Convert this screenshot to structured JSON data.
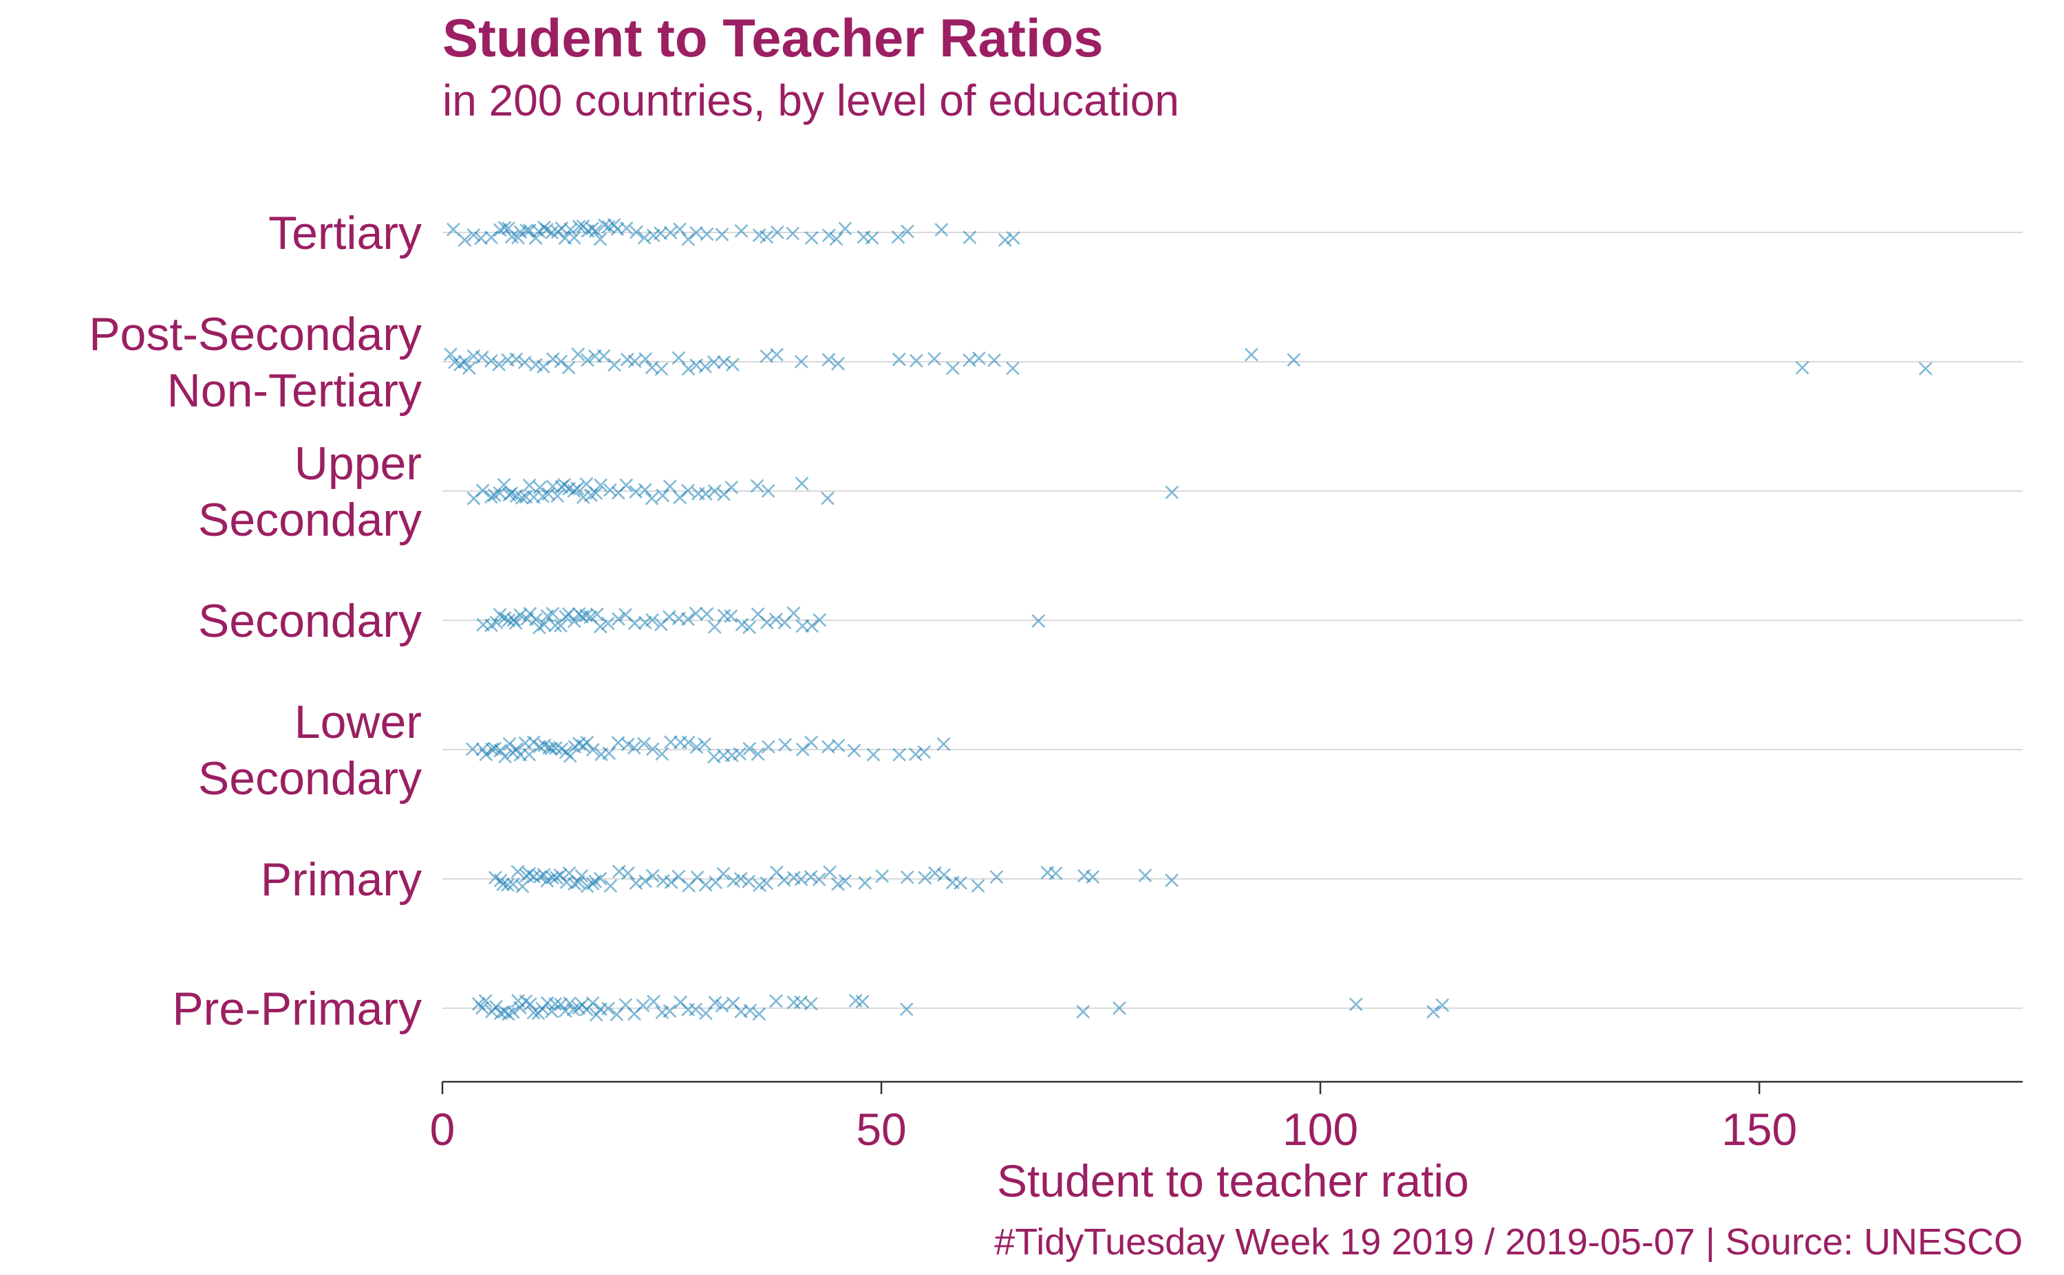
{
  "chart_data": {
    "type": "scatter",
    "title": "Student to Teacher Ratios",
    "subtitle": "in 200 countries, by level of education",
    "xlabel": "Student to teacher ratio",
    "caption": "#TidyTuesday Week 19 2019 / 2019-05-07 | Source: UNESCO",
    "xlim": [
      0,
      180
    ],
    "xticks": [
      0,
      50,
      100,
      150
    ],
    "grid": "horizontal",
    "marker": "x",
    "colors": {
      "text": "#9b1f62",
      "points": "#1a80b6",
      "grid": "#d9d9d9",
      "axis": "#333333"
    },
    "categories": [
      "Pre-Primary",
      "Primary",
      "Lower Secondary",
      "Secondary",
      "Upper Secondary",
      "Post-Secondary Non-Tertiary",
      "Tertiary"
    ],
    "category_display": {
      "Pre-Primary": [
        "Pre-Primary"
      ],
      "Primary": [
        "Primary"
      ],
      "Lower Secondary": [
        "Lower",
        "Secondary"
      ],
      "Secondary": [
        "Secondary"
      ],
      "Upper Secondary": [
        "Upper",
        "Secondary"
      ],
      "Post-Secondary Non-Tertiary": [
        "Post-Secondary",
        "Non-Tertiary"
      ],
      "Tertiary": [
        "Tertiary"
      ]
    },
    "series": [
      {
        "category": "Tertiary",
        "values": [
          1.2,
          2.5,
          3.5,
          4.5,
          5.5,
          6.5,
          7,
          7.5,
          8,
          8.5,
          9,
          9.5,
          10,
          10.5,
          11,
          11.5,
          12,
          12.5,
          13,
          13.5,
          14,
          14.5,
          15,
          15.5,
          16,
          16.5,
          17,
          17.5,
          18,
          18.5,
          19,
          19.5,
          20,
          21,
          22,
          23,
          24,
          25,
          26,
          27,
          28,
          29,
          30,
          32,
          34,
          36,
          37,
          38,
          40,
          42,
          44,
          45,
          46,
          48,
          49,
          52,
          53,
          57,
          60,
          64,
          65
        ]
      },
      {
        "category": "Post-Secondary Non-Tertiary",
        "values": [
          1,
          1.5,
          2,
          2.5,
          3,
          3.5,
          4.5,
          5.5,
          6.5,
          7.5,
          8.5,
          9.5,
          10.5,
          11.5,
          12.5,
          13.5,
          14.5,
          15.5,
          16.5,
          17.5,
          18.5,
          19.5,
          21,
          22,
          23,
          24,
          25,
          27,
          28,
          29,
          30,
          31,
          32,
          33,
          37,
          38,
          41,
          44,
          45,
          52,
          54,
          56,
          58,
          60,
          61,
          63,
          65,
          92,
          97,
          155,
          169
        ]
      },
      {
        "category": "Upper Secondary",
        "values": [
          3.5,
          4.5,
          5.5,
          6,
          6.5,
          7,
          7.5,
          8,
          8.5,
          9,
          9.5,
          10,
          10.5,
          11,
          11.5,
          12,
          12.5,
          13,
          13.5,
          14,
          14.5,
          15,
          15.5,
          16,
          16.5,
          17,
          17.5,
          18,
          19,
          20,
          21,
          22,
          23,
          24,
          25,
          26,
          27,
          28,
          29,
          30,
          31,
          32,
          33,
          36,
          37,
          41,
          44,
          83
        ]
      },
      {
        "category": "Secondary",
        "values": [
          4.5,
          5.5,
          6,
          6.5,
          7,
          7.5,
          8,
          8.5,
          9,
          9.5,
          10,
          10.5,
          11,
          11.5,
          12,
          12.5,
          13,
          13.5,
          14,
          14.5,
          15,
          15.5,
          16,
          16.5,
          17,
          17.5,
          18,
          19,
          20,
          21,
          22,
          23,
          24,
          25,
          26,
          27,
          28,
          29,
          30,
          31,
          32,
          33,
          34,
          35,
          36,
          37,
          38,
          39,
          40,
          41,
          42,
          43,
          68
        ]
      },
      {
        "category": "Lower Secondary",
        "values": [
          3.5,
          4.5,
          5,
          5.5,
          6,
          6.5,
          7,
          7.5,
          8,
          8.5,
          9,
          9.5,
          10,
          10.5,
          11,
          11.5,
          12,
          12.5,
          13,
          13.5,
          14,
          14.5,
          15,
          15.5,
          16,
          16.5,
          17,
          18,
          19,
          20,
          21,
          22,
          23,
          24,
          25,
          26,
          27,
          28,
          29,
          30,
          31,
          32,
          33,
          34,
          35,
          36,
          37,
          39,
          41,
          42,
          44,
          45,
          47,
          49,
          52,
          54,
          55,
          57
        ]
      },
      {
        "category": "Primary",
        "values": [
          6,
          6.5,
          7,
          7.5,
          8,
          8.5,
          9,
          9.5,
          10,
          10.5,
          11,
          11.5,
          12,
          12.5,
          13,
          13.5,
          14,
          14.5,
          15,
          15.5,
          16,
          16.5,
          17,
          17.5,
          18,
          19,
          20,
          21,
          22,
          23,
          24,
          25,
          26,
          27,
          28,
          29,
          30,
          31,
          32,
          33,
          34,
          35,
          36,
          37,
          38,
          39,
          40,
          41,
          42,
          43,
          44,
          45,
          46,
          48,
          50,
          53,
          55,
          56,
          57,
          58,
          59,
          61,
          63,
          69,
          70,
          73,
          74,
          80,
          83
        ]
      },
      {
        "category": "Pre-Primary",
        "values": [
          4,
          4.5,
          5,
          5.5,
          6,
          6.5,
          7,
          7.5,
          8,
          8.5,
          9,
          9.5,
          10,
          10.5,
          11,
          11.5,
          12,
          12.5,
          13,
          13.5,
          14,
          14.5,
          15,
          15.5,
          16,
          16.5,
          17,
          17.5,
          18,
          19,
          20,
          21,
          22,
          23,
          24,
          25,
          26,
          27,
          28,
          29,
          30,
          31,
          32,
          33,
          34,
          35,
          36,
          38,
          40,
          41,
          42,
          47,
          48,
          53,
          73,
          77,
          104,
          113,
          114
        ]
      }
    ]
  }
}
